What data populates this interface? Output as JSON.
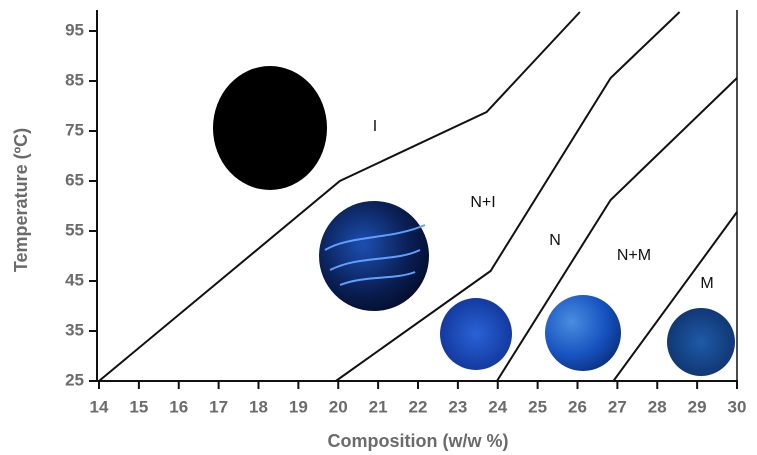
{
  "chart_data": {
    "type": "line",
    "x_label": "Composition (w/w %)",
    "y_label": "Temperature (ºC)",
    "xlim": [
      14,
      30
    ],
    "ylim": [
      25,
      99
    ],
    "xticks": [
      14,
      15,
      16,
      17,
      18,
      19,
      20,
      21,
      22,
      23,
      24,
      25,
      26,
      27,
      28,
      29,
      30
    ],
    "yticks": [
      25,
      35,
      45,
      55,
      65,
      75,
      85,
      95
    ],
    "series": [
      {
        "color": "#111111",
        "x": [
          14,
          20.04,
          23.72,
          26.06
        ],
        "values": [
          25,
          65,
          78.8,
          98.8
        ]
      },
      {
        "color": "#111111",
        "x": [
          19.94,
          23.82,
          26.83,
          28.56
        ],
        "values": [
          25,
          47,
          85.6,
          98.8
        ]
      },
      {
        "color": "#111111",
        "x": [
          23.98,
          26.83,
          30
        ],
        "values": [
          25,
          61.2,
          85.6
        ]
      },
      {
        "color": "#111111",
        "x": [
          26.9,
          30
        ],
        "values": [
          25,
          58.8
        ]
      }
    ],
    "region_labels": [
      "I",
      "N+I",
      "N",
      "N+M",
      "M"
    ]
  }
}
